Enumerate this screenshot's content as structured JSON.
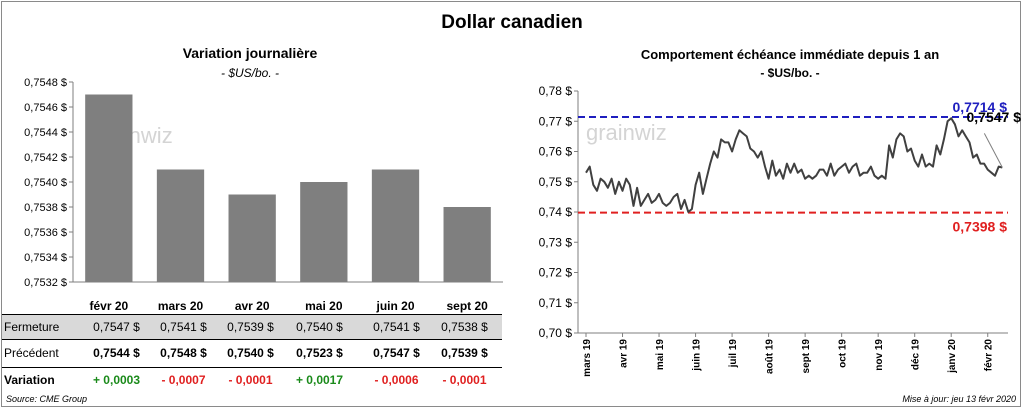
{
  "title": "Dollar canadien",
  "left_chart": {
    "title": "Variation  journalière",
    "subtitle": "- $US/bo. -"
  },
  "right_chart": {
    "title": "Comportement échéance immédiate depuis 1 an",
    "subtitle": "- $US/bo. -"
  },
  "watermark": "grainwiz",
  "table": {
    "rows": [
      {
        "label": "Fermeture",
        "values": [
          "0,7547  $",
          "0,7541  $",
          "0,7539  $",
          "0,7540  $",
          "0,7541  $",
          "0,7538  $"
        ]
      },
      {
        "label": "Précédent",
        "values": [
          "0,7544  $",
          "0,7548  $",
          "0,7540  $",
          "0,7523  $",
          "0,7547  $",
          "0,7539  $"
        ]
      },
      {
        "label": "Variation",
        "values": [
          "+ 0,0003",
          "- 0,0007",
          "- 0,0001",
          "+ 0,0017",
          "- 0,0006",
          "- 0,0001"
        ]
      }
    ]
  },
  "footer": {
    "source": "Source: CME Group",
    "updated": "Mise à jour: jeu 13 févr 2020"
  },
  "colors": {
    "bar": "#7f7f7f",
    "line": "#404040",
    "high": "#1f1fbf",
    "low": "#e02020",
    "positive": "#1a8a1a",
    "negative": "#e02020"
  },
  "chart_data": [
    {
      "type": "bar",
      "title": "Variation  journalière",
      "subtitle": "- $US/bo. -",
      "categories": [
        "févr 20",
        "mars 20",
        "avr 20",
        "mai 20",
        "juin 20",
        "sept 20"
      ],
      "values": [
        0.7547,
        0.7541,
        0.7539,
        0.754,
        0.7541,
        0.7538
      ],
      "ylim": [
        0.7532,
        0.7548
      ],
      "yticks": [
        "0,7532 $",
        "0,7534 $",
        "0,7536 $",
        "0,7538 $",
        "0,7540 $",
        "0,7542 $",
        "0,7544 $",
        "0,7546 $",
        "0,7548 $"
      ],
      "ytick_values": [
        0.7532,
        0.7534,
        0.7536,
        0.7538,
        0.754,
        0.7542,
        0.7544,
        0.7546,
        0.7548
      ]
    },
    {
      "type": "line",
      "title": "Comportement échéance immédiate depuis 1 an",
      "subtitle": "- $US/bo. -",
      "ylim": [
        0.7,
        0.78
      ],
      "yticks": [
        "0,70 $",
        "0,71 $",
        "0,72 $",
        "0,73 $",
        "0,74 $",
        "0,75 $",
        "0,76 $",
        "0,77 $",
        "0,78 $"
      ],
      "ytick_values": [
        0.7,
        0.71,
        0.72,
        0.73,
        0.74,
        0.75,
        0.76,
        0.77,
        0.78
      ],
      "xticks": [
        "mars 19",
        "avr 19",
        "mai 19",
        "juin 19",
        "juil 19",
        "août 19",
        "sept 19",
        "oct 19",
        "nov 19",
        "déc 19",
        "janv 20",
        "févr 20"
      ],
      "xlim": [
        0,
        11.5
      ],
      "series": [
        {
          "name": "Dollar canadien",
          "x": [
            0,
            0.1,
            0.2,
            0.3,
            0.4,
            0.5,
            0.6,
            0.7,
            0.8,
            0.9,
            1.0,
            1.1,
            1.2,
            1.3,
            1.4,
            1.5,
            1.6,
            1.7,
            1.8,
            1.9,
            2.0,
            2.1,
            2.2,
            2.3,
            2.4,
            2.5,
            2.6,
            2.7,
            2.8,
            2.9,
            3.0,
            3.1,
            3.2,
            3.3,
            3.4,
            3.5,
            3.6,
            3.7,
            3.8,
            3.9,
            4.0,
            4.1,
            4.2,
            4.3,
            4.4,
            4.5,
            4.6,
            4.7,
            4.8,
            4.9,
            5.0,
            5.1,
            5.2,
            5.3,
            5.4,
            5.5,
            5.6,
            5.7,
            5.8,
            5.9,
            6.0,
            6.1,
            6.2,
            6.3,
            6.4,
            6.5,
            6.6,
            6.7,
            6.8,
            6.9,
            7.0,
            7.1,
            7.2,
            7.3,
            7.4,
            7.5,
            7.6,
            7.7,
            7.8,
            7.9,
            8.0,
            8.1,
            8.2,
            8.3,
            8.4,
            8.5,
            8.6,
            8.7,
            8.8,
            8.9,
            9.0,
            9.1,
            9.2,
            9.3,
            9.4,
            9.5,
            9.6,
            9.7,
            9.8,
            9.9,
            10.0,
            10.1,
            10.2,
            10.3,
            10.4,
            10.5,
            10.6,
            10.7,
            10.8,
            10.9,
            11.0,
            11.1,
            11.2,
            11.3,
            11.4
          ],
          "values": [
            0.753,
            0.755,
            0.749,
            0.747,
            0.751,
            0.75,
            0.748,
            0.751,
            0.746,
            0.75,
            0.747,
            0.751,
            0.749,
            0.742,
            0.748,
            0.742,
            0.744,
            0.746,
            0.743,
            0.744,
            0.746,
            0.743,
            0.742,
            0.743,
            0.745,
            0.746,
            0.741,
            0.744,
            0.74,
            0.741,
            0.749,
            0.753,
            0.746,
            0.751,
            0.756,
            0.76,
            0.758,
            0.764,
            0.763,
            0.763,
            0.76,
            0.764,
            0.767,
            0.766,
            0.765,
            0.761,
            0.76,
            0.758,
            0.76,
            0.755,
            0.751,
            0.757,
            0.752,
            0.754,
            0.751,
            0.756,
            0.753,
            0.756,
            0.753,
            0.754,
            0.751,
            0.752,
            0.751,
            0.752,
            0.754,
            0.754,
            0.752,
            0.756,
            0.752,
            0.754,
            0.755,
            0.756,
            0.753,
            0.755,
            0.756,
            0.752,
            0.753,
            0.753,
            0.755,
            0.752,
            0.751,
            0.752,
            0.751,
            0.762,
            0.758,
            0.764,
            0.766,
            0.765,
            0.76,
            0.761,
            0.757,
            0.755,
            0.759,
            0.755,
            0.756,
            0.755,
            0.762,
            0.759,
            0.764,
            0.77,
            0.771,
            0.769,
            0.765,
            0.767,
            0.765,
            0.763,
            0.758,
            0.759,
            0.756,
            0.756,
            0.754,
            0.753,
            0.752,
            0.755,
            0.7547
          ]
        }
      ],
      "hlines": [
        {
          "name": "high",
          "value": 0.7714,
          "label": "0,7714  $"
        },
        {
          "name": "low",
          "value": 0.7398,
          "label": "0,7398  $"
        }
      ],
      "last_label": "0,7547 $"
    }
  ]
}
